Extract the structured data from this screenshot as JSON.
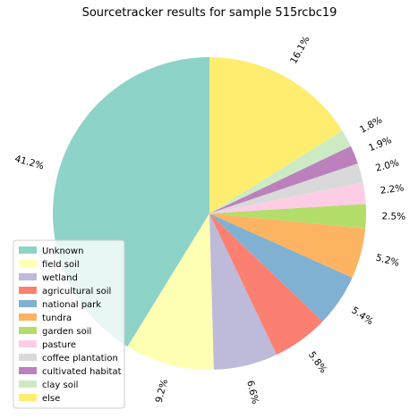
{
  "chart_data": {
    "type": "pie",
    "title": "Sourcetracker results for sample 515rcbc19",
    "start_angle_deg": 90,
    "direction": "counterclockwise",
    "legend_position": "lower-left",
    "slices": [
      {
        "label": "Unknown",
        "value": 41.2,
        "pct_label": "41.2%",
        "color": "#8dd3c7"
      },
      {
        "label": "field soil",
        "value": 9.2,
        "pct_label": "9.2%",
        "color": "#ffffb3"
      },
      {
        "label": "wetland",
        "value": 6.6,
        "pct_label": "6.6%",
        "color": "#bebada"
      },
      {
        "label": "agricultural soil",
        "value": 5.8,
        "pct_label": "5.8%",
        "color": "#fb8072"
      },
      {
        "label": "national park",
        "value": 5.4,
        "pct_label": "5.4%",
        "color": "#80b1d3"
      },
      {
        "label": "tundra",
        "value": 5.2,
        "pct_label": "5.2%",
        "color": "#fdb462"
      },
      {
        "label": "garden soil",
        "value": 2.5,
        "pct_label": "2.5%",
        "color": "#b3de69"
      },
      {
        "label": "pasture",
        "value": 2.2,
        "pct_label": "2.2%",
        "color": "#fccde5"
      },
      {
        "label": "coffee plantation",
        "value": 2.0,
        "pct_label": "2.0%",
        "color": "#d9d9d9"
      },
      {
        "label": "cultivated habitat",
        "value": 1.9,
        "pct_label": "1.9%",
        "color": "#bc80bd"
      },
      {
        "label": "clay soil",
        "value": 1.8,
        "pct_label": "1.8%",
        "color": "#ccebc5"
      },
      {
        "label": "else",
        "value": 16.1,
        "pct_label": "16.1%",
        "color": "#ffed6f"
      }
    ]
  }
}
